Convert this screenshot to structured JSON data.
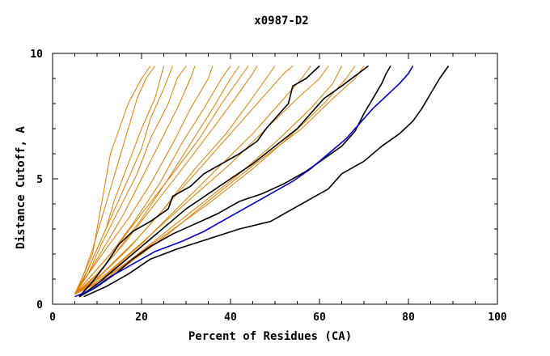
{
  "chart_data": {
    "type": "line",
    "title": "x0987-D2",
    "xlabel": "Percent of Residues (CA)",
    "ylabel": "Distance Cutoff, A",
    "xlim": [
      0,
      100
    ],
    "ylim": [
      0,
      10
    ],
    "xticks": [
      0,
      20,
      40,
      60,
      80,
      100
    ],
    "yticks": [
      0,
      5,
      10
    ],
    "grid": false,
    "colors": {
      "orange": "#e07d00",
      "black": "#000000",
      "blue": "#0000cc"
    },
    "series": [
      {
        "color": "orange",
        "points": [
          [
            5,
            0.4
          ],
          [
            7,
            1.2
          ],
          [
            9,
            2.0
          ],
          [
            10,
            3.0
          ],
          [
            11,
            4.0
          ],
          [
            12,
            5.0
          ],
          [
            13,
            6.0
          ],
          [
            15,
            7.0
          ],
          [
            17,
            8.0
          ],
          [
            20,
            9.0
          ],
          [
            22,
            9.5
          ]
        ]
      },
      {
        "color": "orange",
        "points": [
          [
            5,
            0.4
          ],
          [
            7,
            1.2
          ],
          [
            9,
            2.2
          ],
          [
            11,
            3.4
          ],
          [
            13,
            4.6
          ],
          [
            15,
            5.8
          ],
          [
            17,
            7.0
          ],
          [
            19,
            8.2
          ],
          [
            21,
            9.0
          ],
          [
            23,
            9.5
          ]
        ]
      },
      {
        "color": "orange",
        "points": [
          [
            5,
            0.4
          ],
          [
            7,
            1.0
          ],
          [
            9,
            1.8
          ],
          [
            12,
            3.0
          ],
          [
            14,
            4.2
          ],
          [
            17,
            5.6
          ],
          [
            20,
            7.0
          ],
          [
            23,
            8.2
          ],
          [
            25,
            9.5
          ]
        ]
      },
      {
        "color": "orange",
        "points": [
          [
            5,
            0.4
          ],
          [
            8,
            1.4
          ],
          [
            11,
            2.6
          ],
          [
            14,
            3.8
          ],
          [
            17,
            5.0
          ],
          [
            20,
            6.2
          ],
          [
            22,
            7.4
          ],
          [
            25,
            8.6
          ],
          [
            27,
            9.5
          ]
        ]
      },
      {
        "color": "orange",
        "points": [
          [
            5,
            0.4
          ],
          [
            8,
            1.2
          ],
          [
            11,
            2.4
          ],
          [
            15,
            3.8
          ],
          [
            19,
            5.2
          ],
          [
            22,
            6.6
          ],
          [
            26,
            8.0
          ],
          [
            28,
            9.0
          ],
          [
            30,
            9.5
          ]
        ]
      },
      {
        "color": "orange",
        "points": [
          [
            5,
            0.4
          ],
          [
            8,
            1.2
          ],
          [
            12,
            2.4
          ],
          [
            16,
            3.6
          ],
          [
            20,
            5.0
          ],
          [
            24,
            6.4
          ],
          [
            28,
            7.8
          ],
          [
            31,
            9.0
          ],
          [
            32,
            9.5
          ]
        ]
      },
      {
        "color": "orange",
        "points": [
          [
            5,
            0.4
          ],
          [
            8,
            1.2
          ],
          [
            12,
            2.2
          ],
          [
            17,
            3.4
          ],
          [
            22,
            4.8
          ],
          [
            27,
            6.4
          ],
          [
            31,
            7.8
          ],
          [
            35,
            9.0
          ],
          [
            36,
            9.5
          ]
        ]
      },
      {
        "color": "orange",
        "points": [
          [
            5,
            0.4
          ],
          [
            9,
            1.2
          ],
          [
            13,
            2.0
          ],
          [
            18,
            3.2
          ],
          [
            24,
            4.8
          ],
          [
            29,
            6.4
          ],
          [
            34,
            7.8
          ],
          [
            38,
            9.0
          ],
          [
            40,
            9.5
          ]
        ]
      },
      {
        "color": "orange",
        "points": [
          [
            5,
            0.4
          ],
          [
            9,
            1.0
          ],
          [
            14,
            2.0
          ],
          [
            20,
            3.4
          ],
          [
            26,
            5.0
          ],
          [
            31,
            6.4
          ],
          [
            36,
            7.8
          ],
          [
            40,
            9.0
          ],
          [
            42,
            9.5
          ]
        ]
      },
      {
        "color": "orange",
        "points": [
          [
            5,
            0.4
          ],
          [
            9,
            1.2
          ],
          [
            14,
            2.2
          ],
          [
            20,
            3.6
          ],
          [
            27,
            5.2
          ],
          [
            33,
            6.6
          ],
          [
            38,
            8.0
          ],
          [
            42,
            9.0
          ],
          [
            44,
            9.5
          ]
        ]
      },
      {
        "color": "orange",
        "points": [
          [
            5,
            0.4
          ],
          [
            10,
            1.2
          ],
          [
            16,
            2.4
          ],
          [
            23,
            4.0
          ],
          [
            30,
            5.6
          ],
          [
            36,
            7.0
          ],
          [
            41,
            8.2
          ],
          [
            45,
            9.2
          ],
          [
            46,
            9.5
          ]
        ]
      },
      {
        "color": "orange",
        "points": [
          [
            5,
            0.4
          ],
          [
            10,
            1.0
          ],
          [
            17,
            2.2
          ],
          [
            25,
            3.8
          ],
          [
            32,
            5.4
          ],
          [
            39,
            6.8
          ],
          [
            44,
            8.0
          ],
          [
            48,
            9.0
          ],
          [
            50,
            9.5
          ]
        ]
      },
      {
        "color": "orange",
        "points": [
          [
            5,
            0.4
          ],
          [
            11,
            1.2
          ],
          [
            19,
            2.6
          ],
          [
            27,
            4.2
          ],
          [
            35,
            5.8
          ],
          [
            42,
            7.2
          ],
          [
            48,
            8.4
          ],
          [
            52,
            9.2
          ],
          [
            54,
            9.5
          ]
        ]
      },
      {
        "color": "orange",
        "points": [
          [
            5,
            0.4
          ],
          [
            11,
            1.0
          ],
          [
            20,
            2.4
          ],
          [
            29,
            4.0
          ],
          [
            37,
            5.4
          ],
          [
            45,
            6.8
          ],
          [
            51,
            8.0
          ],
          [
            56,
            9.0
          ],
          [
            58,
            9.5
          ]
        ]
      },
      {
        "color": "orange",
        "points": [
          [
            5,
            0.4
          ],
          [
            12,
            1.2
          ],
          [
            21,
            2.6
          ],
          [
            31,
            4.2
          ],
          [
            40,
            5.6
          ],
          [
            48,
            7.0
          ],
          [
            55,
            8.2
          ],
          [
            60,
            9.0
          ],
          [
            62,
            9.5
          ]
        ]
      },
      {
        "color": "orange",
        "points": [
          [
            5,
            0.4
          ],
          [
            12,
            1.0
          ],
          [
            22,
            2.4
          ],
          [
            32,
            3.8
          ],
          [
            42,
            5.2
          ],
          [
            51,
            6.6
          ],
          [
            58,
            7.8
          ],
          [
            63,
            8.8
          ],
          [
            65,
            9.5
          ]
        ]
      },
      {
        "color": "orange",
        "points": [
          [
            5,
            0.4
          ],
          [
            13,
            1.2
          ],
          [
            24,
            2.6
          ],
          [
            35,
            4.0
          ],
          [
            45,
            5.4
          ],
          [
            54,
            6.8
          ],
          [
            61,
            8.0
          ],
          [
            66,
            9.0
          ],
          [
            68,
            9.5
          ]
        ]
      },
      {
        "color": "orange",
        "points": [
          [
            5,
            0.4
          ],
          [
            14,
            1.2
          ],
          [
            26,
            2.8
          ],
          [
            37,
            4.4
          ],
          [
            47,
            5.8
          ],
          [
            56,
            7.0
          ],
          [
            63,
            8.2
          ],
          [
            68,
            9.0
          ],
          [
            70,
            9.5
          ]
        ]
      },
      {
        "color": "black",
        "points": [
          [
            6,
            0.3
          ],
          [
            9,
            0.9
          ],
          [
            12,
            1.6
          ],
          [
            15,
            2.4
          ],
          [
            18,
            2.9
          ],
          [
            22,
            3.3
          ],
          [
            26,
            3.8
          ],
          [
            27,
            4.3
          ],
          [
            31,
            4.7
          ],
          [
            34,
            5.2
          ],
          [
            38,
            5.6
          ],
          [
            42,
            6.0
          ],
          [
            46,
            6.5
          ],
          [
            48,
            7.0
          ],
          [
            51,
            7.6
          ],
          [
            53,
            8.0
          ],
          [
            54,
            8.7
          ],
          [
            57,
            9.0
          ],
          [
            60,
            9.5
          ]
        ]
      },
      {
        "color": "black",
        "points": [
          [
            6,
            0.3
          ],
          [
            10,
            0.8
          ],
          [
            14,
            1.4
          ],
          [
            18,
            2.0
          ],
          [
            22,
            2.6
          ],
          [
            26,
            3.2
          ],
          [
            30,
            3.8
          ],
          [
            35,
            4.4
          ],
          [
            40,
            5.0
          ],
          [
            45,
            5.6
          ],
          [
            50,
            6.3
          ],
          [
            55,
            7.0
          ],
          [
            58,
            7.6
          ],
          [
            61,
            8.2
          ],
          [
            65,
            8.7
          ],
          [
            68,
            9.1
          ],
          [
            71,
            9.5
          ]
        ]
      },
      {
        "color": "black",
        "points": [
          [
            6,
            0.3
          ],
          [
            10,
            0.7
          ],
          [
            14,
            1.2
          ],
          [
            18,
            1.8
          ],
          [
            22,
            2.3
          ],
          [
            27,
            2.8
          ],
          [
            32,
            3.2
          ],
          [
            37,
            3.6
          ],
          [
            42,
            4.1
          ],
          [
            47,
            4.4
          ],
          [
            52,
            4.8
          ],
          [
            57,
            5.3
          ],
          [
            61,
            5.8
          ],
          [
            65,
            6.3
          ],
          [
            68,
            6.9
          ],
          [
            70,
            7.6
          ],
          [
            72,
            8.2
          ],
          [
            74,
            8.8
          ],
          [
            75,
            9.2
          ],
          [
            76,
            9.5
          ]
        ]
      },
      {
        "color": "blue",
        "points": [
          [
            5,
            0.3
          ],
          [
            9,
            0.6
          ],
          [
            13,
            1.1
          ],
          [
            18,
            1.6
          ],
          [
            23,
            2.1
          ],
          [
            29,
            2.5
          ],
          [
            34,
            2.9
          ],
          [
            39,
            3.4
          ],
          [
            44,
            3.9
          ],
          [
            49,
            4.4
          ],
          [
            54,
            4.9
          ],
          [
            58,
            5.4
          ],
          [
            62,
            6.0
          ],
          [
            66,
            6.6
          ],
          [
            69,
            7.2
          ],
          [
            72,
            7.8
          ],
          [
            75,
            8.3
          ],
          [
            78,
            8.8
          ],
          [
            80,
            9.2
          ],
          [
            81,
            9.5
          ]
        ]
      },
      {
        "color": "black",
        "points": [
          [
            7,
            0.3
          ],
          [
            12,
            0.7
          ],
          [
            17,
            1.2
          ],
          [
            22,
            1.8
          ],
          [
            28,
            2.2
          ],
          [
            35,
            2.6
          ],
          [
            42,
            3.0
          ],
          [
            49,
            3.3
          ],
          [
            55,
            3.9
          ],
          [
            62,
            4.6
          ],
          [
            65,
            5.2
          ],
          [
            70,
            5.7
          ],
          [
            74,
            6.3
          ],
          [
            78,
            6.8
          ],
          [
            81,
            7.3
          ],
          [
            83,
            7.8
          ],
          [
            85,
            8.4
          ],
          [
            87,
            9.0
          ],
          [
            89,
            9.5
          ]
        ]
      }
    ]
  }
}
